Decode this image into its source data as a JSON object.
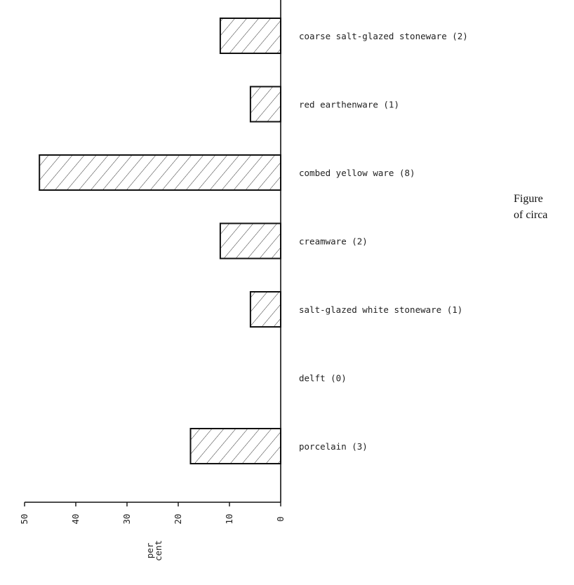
{
  "chart_data": {
    "type": "bar",
    "orientation": "horizontal-leftward",
    "categories": [
      "coarse salt-glazed stoneware (2)",
      "red earthenware (1)",
      "combed yellow ware (8)",
      "creamware (2)",
      "salt-glazed white stoneware (1)",
      "delft (0)",
      "porcelain (3)"
    ],
    "values": [
      11.8,
      5.9,
      47.1,
      11.8,
      5.9,
      0,
      17.6
    ],
    "xlabel": "per cent",
    "xlim": [
      0,
      50
    ],
    "x_ticks": [
      0,
      10,
      20,
      30,
      40,
      50
    ],
    "bar_fill": "diagonal hatch",
    "bar_color": "#111111"
  },
  "caption": {
    "line1": "Figure",
    "line2": "of circa"
  }
}
